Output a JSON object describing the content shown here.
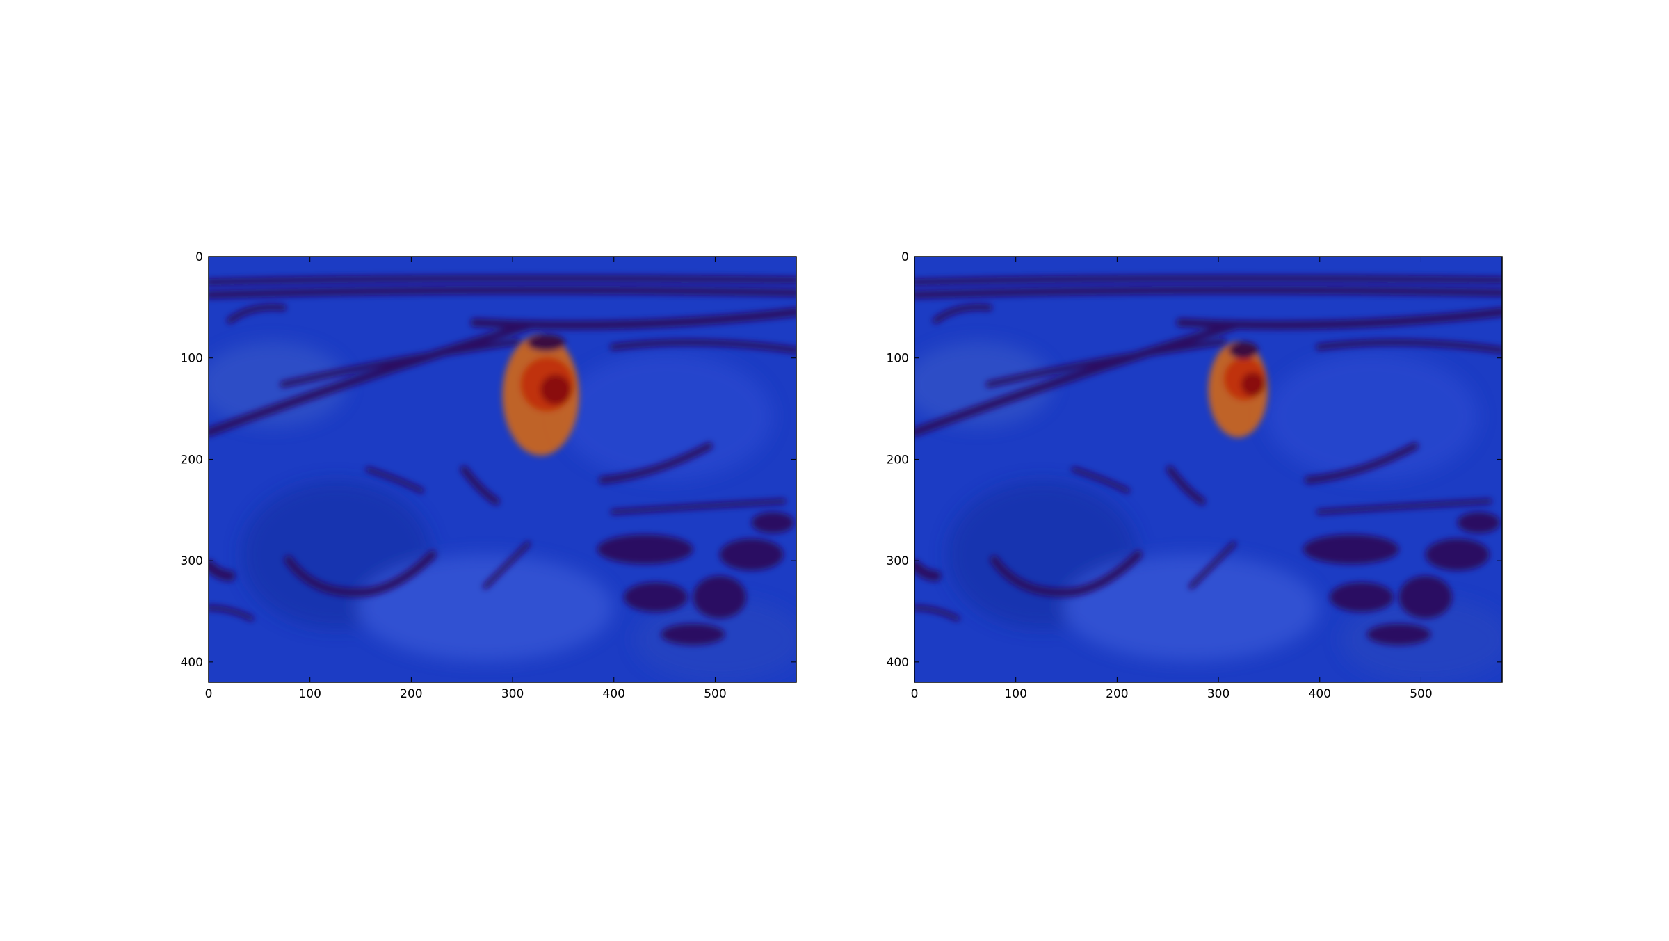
{
  "chart_data": [
    {
      "type": "image",
      "xlim": [
        0,
        580
      ],
      "ylim": [
        420,
        0
      ],
      "xticks": [
        0,
        100,
        200,
        300,
        400,
        500
      ],
      "yticks": [
        0,
        100,
        200,
        300,
        400
      ]
    },
    {
      "type": "image",
      "xlim": [
        0,
        580
      ],
      "ylim": [
        420,
        0
      ],
      "xticks": [
        0,
        100,
        200,
        300,
        400,
        500
      ],
      "yticks": [
        0,
        100,
        200,
        300,
        400
      ]
    }
  ]
}
